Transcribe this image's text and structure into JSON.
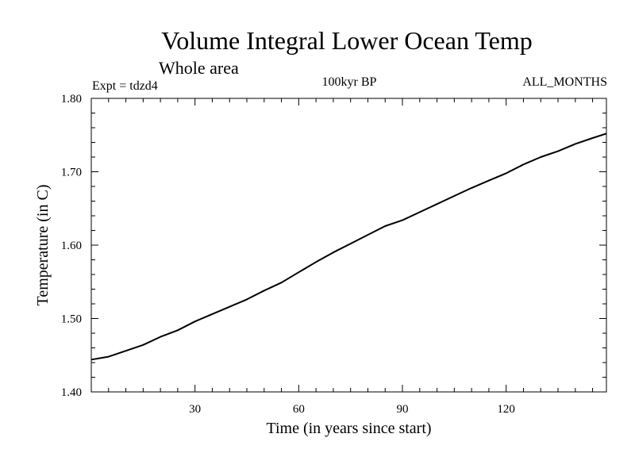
{
  "chart_data": {
    "type": "line",
    "title": "Volume Integral Lower Ocean Temp",
    "subtitle": "Whole area",
    "left_label": "Expt = tdzd4",
    "center_label": "100kyr BP",
    "right_label": "ALL_MONTHS",
    "xlabel": "Time (in years since start)",
    "ylabel": "Temperature (in C)",
    "xlim": [
      0,
      149
    ],
    "ylim": [
      1.4,
      1.8
    ],
    "x_ticks": [
      30,
      60,
      90,
      120
    ],
    "y_ticks": [
      "1.40",
      "1.50",
      "1.60",
      "1.70",
      "1.80"
    ],
    "grid": false,
    "series": [
      {
        "name": "tdzd4",
        "color": "#000000",
        "x": [
          0,
          5,
          10,
          15,
          20,
          25,
          30,
          35,
          40,
          45,
          50,
          55,
          60,
          65,
          70,
          75,
          80,
          85,
          90,
          95,
          100,
          105,
          110,
          115,
          120,
          125,
          130,
          135,
          140,
          145,
          149
        ],
        "y": [
          1.444,
          1.448,
          1.456,
          1.464,
          1.475,
          1.484,
          1.496,
          1.506,
          1.516,
          1.526,
          1.538,
          1.549,
          1.563,
          1.577,
          1.59,
          1.602,
          1.614,
          1.626,
          1.634,
          1.645,
          1.656,
          1.667,
          1.678,
          1.688,
          1.698,
          1.71,
          1.72,
          1.728,
          1.738,
          1.746,
          1.752
        ]
      }
    ]
  }
}
